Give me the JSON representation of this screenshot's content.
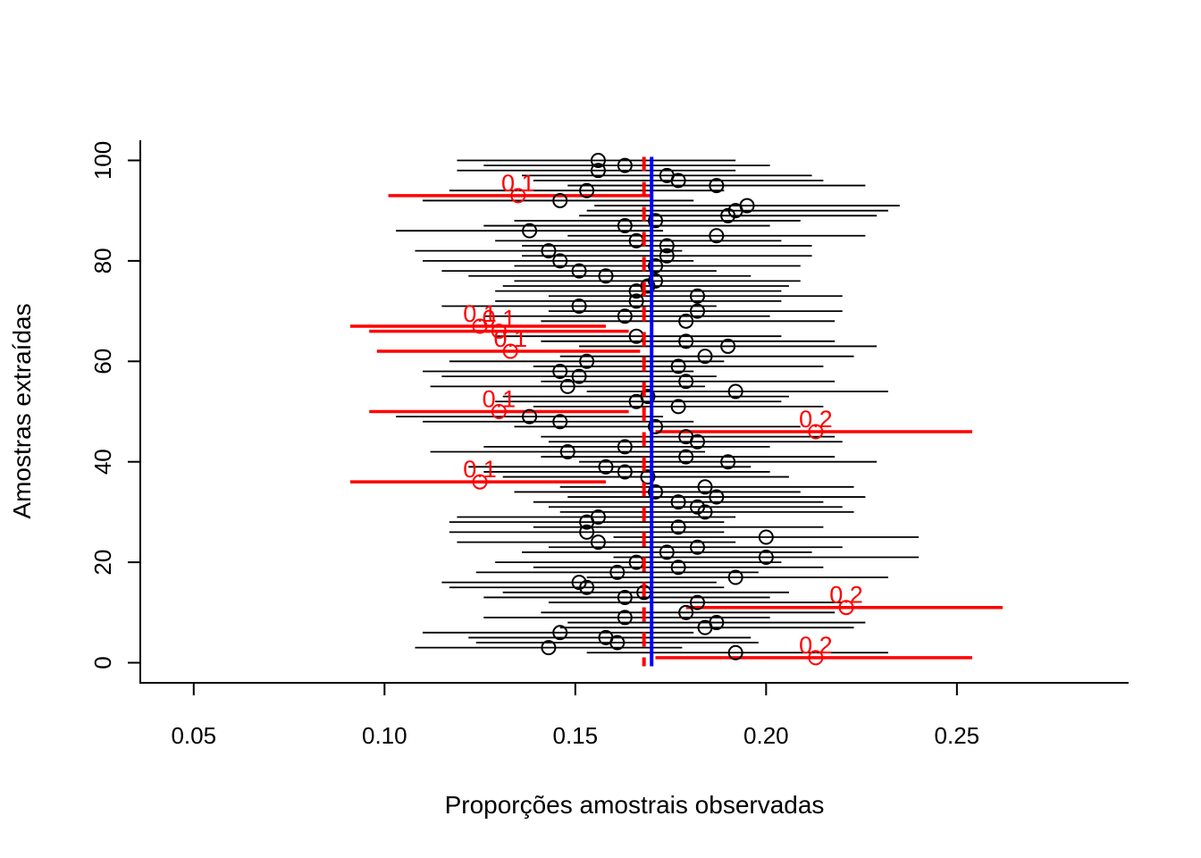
{
  "chart_data": {
    "type": "scatter",
    "title": "",
    "xlabel": "Proporções amostrais observadas",
    "ylabel": "Amostras extraídas",
    "xlim": [
      0.036,
      0.295
    ],
    "ylim": [
      -4,
      104
    ],
    "xticks": [
      "0.05",
      "0.10",
      "0.15",
      "0.20",
      "0.25"
    ],
    "xtick_values": [
      0.05,
      0.1,
      0.15,
      0.2,
      0.25
    ],
    "yticks": [
      "0",
      "20",
      "40",
      "60",
      "80",
      "100"
    ],
    "ytick_values": [
      0,
      20,
      40,
      60,
      80,
      100
    ],
    "grid": false,
    "reference_lines": [
      {
        "x": 0.17,
        "color": "#0000ff",
        "style": "solid"
      },
      {
        "x": 0.168,
        "color": "#ff0000",
        "style": "dashed"
      }
    ],
    "colors": {
      "in_interval": "#000000",
      "outlier": "#ff0000",
      "true_value": "#0000ff"
    },
    "outlier_label_text": [
      "0.1",
      "0.1",
      "0.1",
      "0.1",
      "0.1",
      "0.1",
      "0.2",
      "0.2",
      "0.2"
    ],
    "intervals": [
      {
        "sample": 1,
        "lower": 0.171,
        "upper": 0.254,
        "estimate": 0.213,
        "outlier": true,
        "label": "0.2"
      },
      {
        "sample": 2,
        "lower": 0.153,
        "upper": 0.232,
        "estimate": 0.192,
        "outlier": false
      },
      {
        "sample": 3,
        "lower": 0.108,
        "upper": 0.178,
        "estimate": 0.143,
        "outlier": false
      },
      {
        "sample": 4,
        "lower": 0.124,
        "upper": 0.198,
        "estimate": 0.161,
        "outlier": false
      },
      {
        "sample": 5,
        "lower": 0.122,
        "upper": 0.196,
        "estimate": 0.158,
        "outlier": false
      },
      {
        "sample": 6,
        "lower": 0.11,
        "upper": 0.181,
        "estimate": 0.146,
        "outlier": false
      },
      {
        "sample": 7,
        "lower": 0.146,
        "upper": 0.223,
        "estimate": 0.184,
        "outlier": false
      },
      {
        "sample": 8,
        "lower": 0.148,
        "upper": 0.226,
        "estimate": 0.187,
        "outlier": false
      },
      {
        "sample": 9,
        "lower": 0.126,
        "upper": 0.201,
        "estimate": 0.163,
        "outlier": false
      },
      {
        "sample": 10,
        "lower": 0.141,
        "upper": 0.218,
        "estimate": 0.179,
        "outlier": false
      },
      {
        "sample": 11,
        "lower": 0.179,
        "upper": 0.262,
        "estimate": 0.221,
        "outlier": true,
        "label": "0.2"
      },
      {
        "sample": 12,
        "lower": 0.143,
        "upper": 0.22,
        "estimate": 0.182,
        "outlier": false
      },
      {
        "sample": 13,
        "lower": 0.126,
        "upper": 0.201,
        "estimate": 0.163,
        "outlier": false
      },
      {
        "sample": 14,
        "lower": 0.131,
        "upper": 0.206,
        "estimate": 0.168,
        "outlier": false
      },
      {
        "sample": 15,
        "lower": 0.117,
        "upper": 0.189,
        "estimate": 0.153,
        "outlier": false
      },
      {
        "sample": 16,
        "lower": 0.115,
        "upper": 0.187,
        "estimate": 0.151,
        "outlier": false
      },
      {
        "sample": 17,
        "lower": 0.153,
        "upper": 0.232,
        "estimate": 0.192,
        "outlier": false
      },
      {
        "sample": 18,
        "lower": 0.124,
        "upper": 0.198,
        "estimate": 0.161,
        "outlier": false
      },
      {
        "sample": 19,
        "lower": 0.139,
        "upper": 0.215,
        "estimate": 0.177,
        "outlier": false
      },
      {
        "sample": 20,
        "lower": 0.129,
        "upper": 0.204,
        "estimate": 0.166,
        "outlier": false
      },
      {
        "sample": 21,
        "lower": 0.16,
        "upper": 0.24,
        "estimate": 0.2,
        "outlier": false
      },
      {
        "sample": 22,
        "lower": 0.136,
        "upper": 0.212,
        "estimate": 0.174,
        "outlier": false
      },
      {
        "sample": 23,
        "lower": 0.143,
        "upper": 0.22,
        "estimate": 0.182,
        "outlier": false
      },
      {
        "sample": 24,
        "lower": 0.119,
        "upper": 0.192,
        "estimate": 0.156,
        "outlier": false
      },
      {
        "sample": 25,
        "lower": 0.16,
        "upper": 0.24,
        "estimate": 0.2,
        "outlier": false
      },
      {
        "sample": 26,
        "lower": 0.117,
        "upper": 0.189,
        "estimate": 0.153,
        "outlier": false
      },
      {
        "sample": 27,
        "lower": 0.139,
        "upper": 0.215,
        "estimate": 0.177,
        "outlier": false
      },
      {
        "sample": 28,
        "lower": 0.117,
        "upper": 0.189,
        "estimate": 0.153,
        "outlier": false
      },
      {
        "sample": 29,
        "lower": 0.119,
        "upper": 0.192,
        "estimate": 0.156,
        "outlier": false
      },
      {
        "sample": 30,
        "lower": 0.146,
        "upper": 0.223,
        "estimate": 0.184,
        "outlier": false
      },
      {
        "sample": 31,
        "lower": 0.143,
        "upper": 0.22,
        "estimate": 0.182,
        "outlier": false
      },
      {
        "sample": 32,
        "lower": 0.139,
        "upper": 0.215,
        "estimate": 0.177,
        "outlier": false
      },
      {
        "sample": 33,
        "lower": 0.148,
        "upper": 0.226,
        "estimate": 0.187,
        "outlier": false
      },
      {
        "sample": 34,
        "lower": 0.134,
        "upper": 0.209,
        "estimate": 0.171,
        "outlier": false
      },
      {
        "sample": 35,
        "lower": 0.146,
        "upper": 0.223,
        "estimate": 0.184,
        "outlier": false
      },
      {
        "sample": 36,
        "lower": 0.091,
        "upper": 0.158,
        "estimate": 0.125,
        "outlier": true,
        "label": "0.1"
      },
      {
        "sample": 37,
        "lower": 0.131,
        "upper": 0.206,
        "estimate": 0.169,
        "outlier": false
      },
      {
        "sample": 38,
        "lower": 0.126,
        "upper": 0.201,
        "estimate": 0.163,
        "outlier": false
      },
      {
        "sample": 39,
        "lower": 0.122,
        "upper": 0.196,
        "estimate": 0.158,
        "outlier": false
      },
      {
        "sample": 40,
        "lower": 0.151,
        "upper": 0.229,
        "estimate": 0.19,
        "outlier": false
      },
      {
        "sample": 41,
        "lower": 0.141,
        "upper": 0.218,
        "estimate": 0.179,
        "outlier": false
      },
      {
        "sample": 42,
        "lower": 0.112,
        "upper": 0.184,
        "estimate": 0.148,
        "outlier": false
      },
      {
        "sample": 43,
        "lower": 0.126,
        "upper": 0.201,
        "estimate": 0.163,
        "outlier": false
      },
      {
        "sample": 44,
        "lower": 0.143,
        "upper": 0.22,
        "estimate": 0.182,
        "outlier": false
      },
      {
        "sample": 45,
        "lower": 0.141,
        "upper": 0.218,
        "estimate": 0.179,
        "outlier": false
      },
      {
        "sample": 46,
        "lower": 0.171,
        "upper": 0.254,
        "estimate": 0.213,
        "outlier": true,
        "label": "0.2"
      },
      {
        "sample": 47,
        "lower": 0.134,
        "upper": 0.209,
        "estimate": 0.171,
        "outlier": false
      },
      {
        "sample": 48,
        "lower": 0.11,
        "upper": 0.181,
        "estimate": 0.146,
        "outlier": false
      },
      {
        "sample": 49,
        "lower": 0.103,
        "upper": 0.173,
        "estimate": 0.138,
        "outlier": false
      },
      {
        "sample": 50,
        "lower": 0.096,
        "upper": 0.164,
        "estimate": 0.13,
        "outlier": true,
        "label": "0.1"
      },
      {
        "sample": 51,
        "lower": 0.139,
        "upper": 0.215,
        "estimate": 0.177,
        "outlier": false
      },
      {
        "sample": 52,
        "lower": 0.129,
        "upper": 0.204,
        "estimate": 0.166,
        "outlier": false
      },
      {
        "sample": 53,
        "lower": 0.131,
        "upper": 0.206,
        "estimate": 0.169,
        "outlier": false
      },
      {
        "sample": 54,
        "lower": 0.153,
        "upper": 0.232,
        "estimate": 0.192,
        "outlier": false
      },
      {
        "sample": 55,
        "lower": 0.112,
        "upper": 0.184,
        "estimate": 0.148,
        "outlier": false
      },
      {
        "sample": 56,
        "lower": 0.141,
        "upper": 0.218,
        "estimate": 0.179,
        "outlier": false
      },
      {
        "sample": 57,
        "lower": 0.115,
        "upper": 0.187,
        "estimate": 0.151,
        "outlier": false
      },
      {
        "sample": 58,
        "lower": 0.11,
        "upper": 0.181,
        "estimate": 0.146,
        "outlier": false
      },
      {
        "sample": 59,
        "lower": 0.139,
        "upper": 0.215,
        "estimate": 0.177,
        "outlier": false
      },
      {
        "sample": 60,
        "lower": 0.117,
        "upper": 0.189,
        "estimate": 0.153,
        "outlier": false
      },
      {
        "sample": 61,
        "lower": 0.146,
        "upper": 0.223,
        "estimate": 0.184,
        "outlier": false
      },
      {
        "sample": 62,
        "lower": 0.098,
        "upper": 0.167,
        "estimate": 0.133,
        "outlier": true,
        "label": "0.1"
      },
      {
        "sample": 63,
        "lower": 0.151,
        "upper": 0.229,
        "estimate": 0.19,
        "outlier": false
      },
      {
        "sample": 64,
        "lower": 0.141,
        "upper": 0.218,
        "estimate": 0.179,
        "outlier": false
      },
      {
        "sample": 65,
        "lower": 0.129,
        "upper": 0.204,
        "estimate": 0.166,
        "outlier": false
      },
      {
        "sample": 66,
        "lower": 0.096,
        "upper": 0.164,
        "estimate": 0.13,
        "outlier": true,
        "label": "0.1"
      },
      {
        "sample": 67,
        "lower": 0.091,
        "upper": 0.158,
        "estimate": 0.125,
        "outlier": true,
        "label": "0.1"
      },
      {
        "sample": 68,
        "lower": 0.141,
        "upper": 0.218,
        "estimate": 0.179,
        "outlier": false
      },
      {
        "sample": 69,
        "lower": 0.126,
        "upper": 0.201,
        "estimate": 0.163,
        "outlier": false
      },
      {
        "sample": 70,
        "lower": 0.143,
        "upper": 0.22,
        "estimate": 0.182,
        "outlier": false
      },
      {
        "sample": 71,
        "lower": 0.115,
        "upper": 0.187,
        "estimate": 0.151,
        "outlier": false
      },
      {
        "sample": 72,
        "lower": 0.129,
        "upper": 0.204,
        "estimate": 0.166,
        "outlier": false
      },
      {
        "sample": 73,
        "lower": 0.143,
        "upper": 0.22,
        "estimate": 0.182,
        "outlier": false
      },
      {
        "sample": 74,
        "lower": 0.129,
        "upper": 0.204,
        "estimate": 0.166,
        "outlier": false
      },
      {
        "sample": 75,
        "lower": 0.131,
        "upper": 0.206,
        "estimate": 0.169,
        "outlier": false
      },
      {
        "sample": 76,
        "lower": 0.134,
        "upper": 0.209,
        "estimate": 0.171,
        "outlier": false
      },
      {
        "sample": 77,
        "lower": 0.122,
        "upper": 0.196,
        "estimate": 0.158,
        "outlier": false
      },
      {
        "sample": 78,
        "lower": 0.115,
        "upper": 0.187,
        "estimate": 0.151,
        "outlier": false
      },
      {
        "sample": 79,
        "lower": 0.134,
        "upper": 0.209,
        "estimate": 0.171,
        "outlier": false
      },
      {
        "sample": 80,
        "lower": 0.11,
        "upper": 0.181,
        "estimate": 0.146,
        "outlier": false
      },
      {
        "sample": 81,
        "lower": 0.136,
        "upper": 0.212,
        "estimate": 0.174,
        "outlier": false
      },
      {
        "sample": 82,
        "lower": 0.108,
        "upper": 0.178,
        "estimate": 0.143,
        "outlier": false
      },
      {
        "sample": 83,
        "lower": 0.136,
        "upper": 0.212,
        "estimate": 0.174,
        "outlier": false
      },
      {
        "sample": 84,
        "lower": 0.129,
        "upper": 0.204,
        "estimate": 0.166,
        "outlier": false
      },
      {
        "sample": 85,
        "lower": 0.148,
        "upper": 0.226,
        "estimate": 0.187,
        "outlier": false
      },
      {
        "sample": 86,
        "lower": 0.103,
        "upper": 0.173,
        "estimate": 0.138,
        "outlier": false
      },
      {
        "sample": 87,
        "lower": 0.126,
        "upper": 0.201,
        "estimate": 0.163,
        "outlier": false
      },
      {
        "sample": 88,
        "lower": 0.134,
        "upper": 0.209,
        "estimate": 0.171,
        "outlier": false
      },
      {
        "sample": 89,
        "lower": 0.151,
        "upper": 0.229,
        "estimate": 0.19,
        "outlier": false
      },
      {
        "sample": 90,
        "lower": 0.153,
        "upper": 0.232,
        "estimate": 0.192,
        "outlier": false
      },
      {
        "sample": 91,
        "lower": 0.155,
        "upper": 0.235,
        "estimate": 0.195,
        "outlier": false
      },
      {
        "sample": 92,
        "lower": 0.11,
        "upper": 0.181,
        "estimate": 0.146,
        "outlier": false
      },
      {
        "sample": 93,
        "lower": 0.101,
        "upper": 0.17,
        "estimate": 0.135,
        "outlier": true,
        "label": "0.1"
      },
      {
        "sample": 94,
        "lower": 0.117,
        "upper": 0.189,
        "estimate": 0.153,
        "outlier": false
      },
      {
        "sample": 95,
        "lower": 0.148,
        "upper": 0.226,
        "estimate": 0.187,
        "outlier": false
      },
      {
        "sample": 96,
        "lower": 0.139,
        "upper": 0.215,
        "estimate": 0.177,
        "outlier": false
      },
      {
        "sample": 97,
        "lower": 0.136,
        "upper": 0.212,
        "estimate": 0.174,
        "outlier": false
      },
      {
        "sample": 98,
        "lower": 0.119,
        "upper": 0.192,
        "estimate": 0.156,
        "outlier": false
      },
      {
        "sample": 99,
        "lower": 0.126,
        "upper": 0.201,
        "estimate": 0.163,
        "outlier": false
      },
      {
        "sample": 100,
        "lower": 0.119,
        "upper": 0.192,
        "estimate": 0.156,
        "outlier": false
      }
    ]
  }
}
